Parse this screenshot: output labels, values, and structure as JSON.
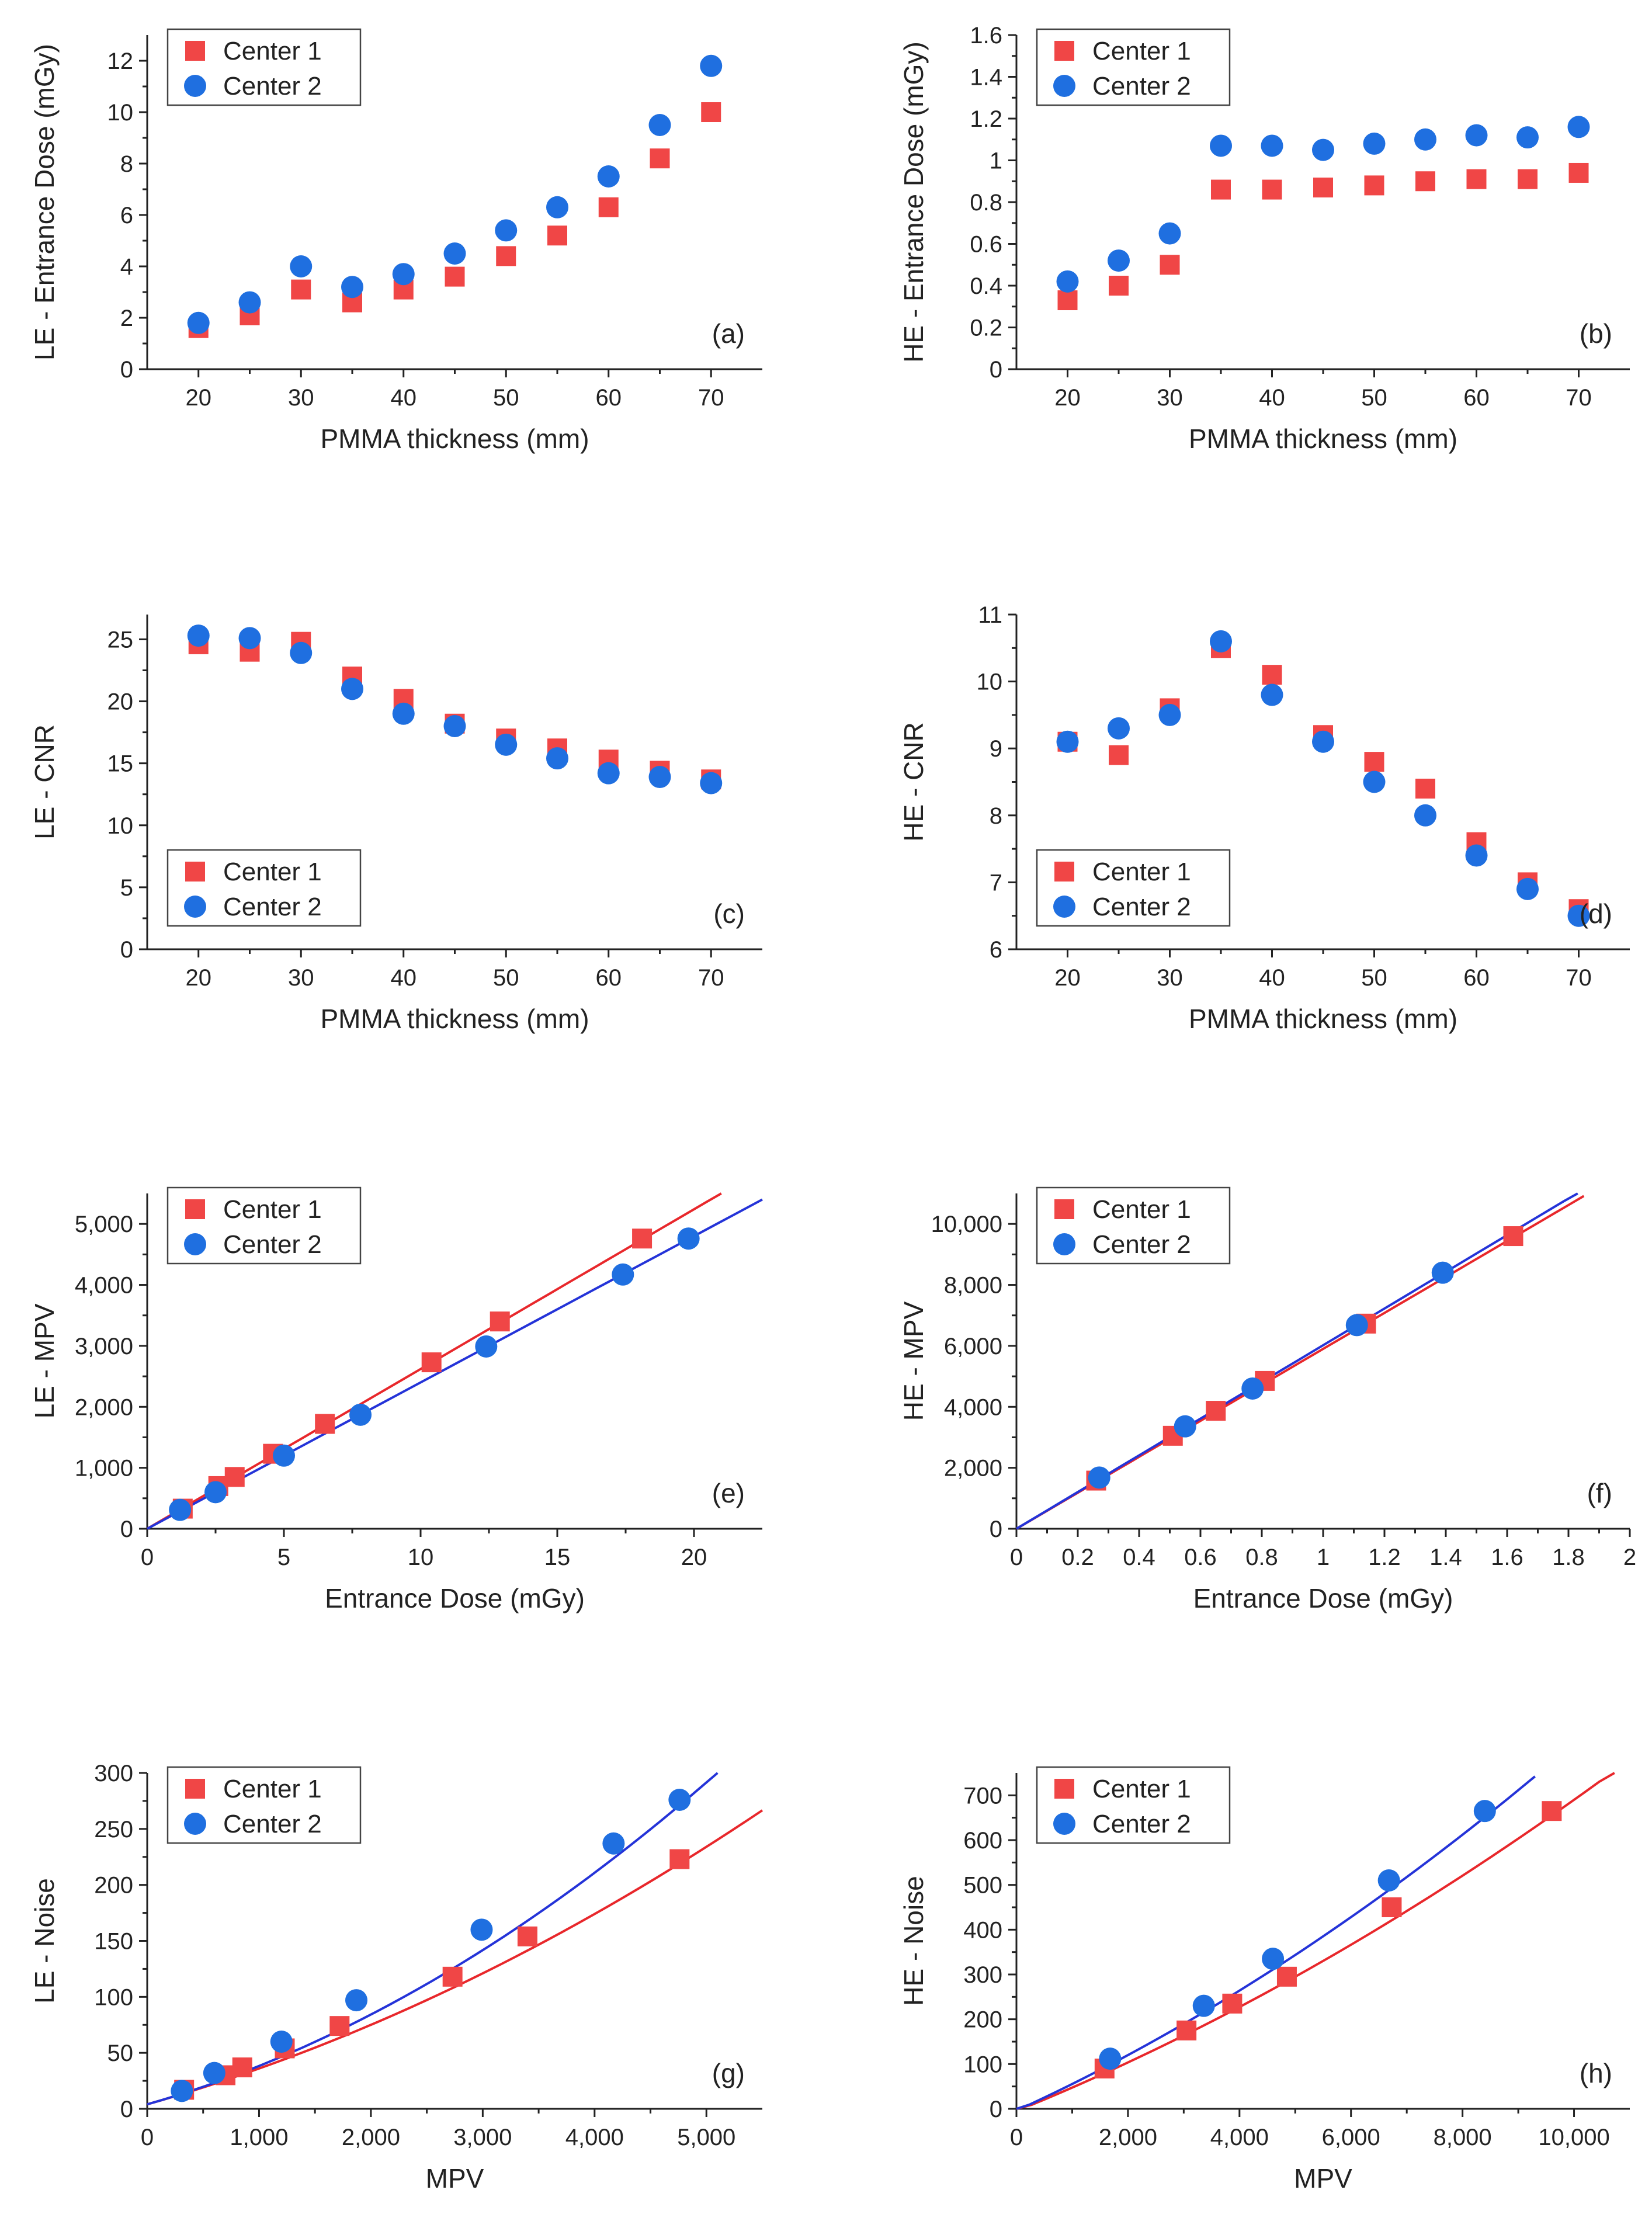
{
  "colors": {
    "center1": "#f04646",
    "center2": "#1f6fe0",
    "fit1": "#e8272b",
    "fit2": "#2433d8",
    "axis": "#222222"
  },
  "legend": {
    "center1": "Center 1",
    "center2": "Center 2"
  },
  "chart_data": [
    {
      "id": "a",
      "type": "scatter",
      "panel_label": "(a)",
      "xlabel": "PMMA thickness (mm)",
      "ylabel": "LE - Entrance Dose (mGy)",
      "xlim": [
        15,
        75
      ],
      "ylim": [
        0,
        13
      ],
      "x_ticks": [
        20,
        30,
        40,
        50,
        60,
        70
      ],
      "x_tick_labels": [
        "20",
        "30",
        "40",
        "50",
        "60",
        "70"
      ],
      "y_ticks": [
        0,
        2,
        4,
        6,
        8,
        10,
        12
      ],
      "y_tick_labels": [
        "0",
        "2",
        "4",
        "6",
        "8",
        "10",
        "12"
      ],
      "legend_position": "top-left",
      "label_position": "bottom-right",
      "series": [
        {
          "name": "Center 1",
          "marker": "square",
          "x": [
            20,
            25,
            30,
            35,
            40,
            45,
            50,
            55,
            60,
            65,
            70
          ],
          "y": [
            1.6,
            2.1,
            3.1,
            2.6,
            3.1,
            3.6,
            4.4,
            5.2,
            6.3,
            8.2,
            10.0
          ]
        },
        {
          "name": "Center 2",
          "marker": "circle",
          "x": [
            20,
            25,
            30,
            35,
            40,
            45,
            50,
            55,
            60,
            65,
            70
          ],
          "y": [
            1.8,
            2.6,
            4.0,
            3.2,
            3.7,
            4.5,
            5.4,
            6.3,
            7.5,
            9.5,
            11.8
          ]
        }
      ]
    },
    {
      "id": "b",
      "type": "scatter",
      "panel_label": "(b)",
      "xlabel": "PMMA thickness (mm)",
      "ylabel": "HE - Entrance Dose (mGy)",
      "xlim": [
        15,
        75
      ],
      "ylim": [
        0,
        1.6
      ],
      "x_ticks": [
        20,
        30,
        40,
        50,
        60,
        70
      ],
      "x_tick_labels": [
        "20",
        "30",
        "40",
        "50",
        "60",
        "70"
      ],
      "y_ticks": [
        0,
        0.2,
        0.4,
        0.6,
        0.8,
        1.0,
        1.2,
        1.4,
        1.6
      ],
      "y_tick_labels": [
        "0",
        "0.2",
        "0.4",
        "0.6",
        "0.8",
        "1",
        "1.2",
        "1.4",
        "1.6"
      ],
      "legend_position": "top-left",
      "label_position": "bottom-right",
      "series": [
        {
          "name": "Center 1",
          "marker": "square",
          "x": [
            20,
            25,
            30,
            35,
            40,
            45,
            50,
            55,
            60,
            65,
            70
          ],
          "y": [
            0.33,
            0.4,
            0.5,
            0.86,
            0.86,
            0.87,
            0.88,
            0.9,
            0.91,
            0.91,
            0.94
          ]
        },
        {
          "name": "Center 2",
          "marker": "circle",
          "x": [
            20,
            25,
            30,
            35,
            40,
            45,
            50,
            55,
            60,
            65,
            70
          ],
          "y": [
            0.42,
            0.52,
            0.65,
            1.07,
            1.07,
            1.05,
            1.08,
            1.1,
            1.12,
            1.11,
            1.16
          ]
        }
      ]
    },
    {
      "id": "c",
      "type": "scatter",
      "panel_label": "(c)",
      "xlabel": "PMMA thickness (mm)",
      "ylabel": "LE - CNR",
      "xlim": [
        15,
        75
      ],
      "ylim": [
        0,
        27
      ],
      "x_ticks": [
        20,
        30,
        40,
        50,
        60,
        70
      ],
      "x_tick_labels": [
        "20",
        "30",
        "40",
        "50",
        "60",
        "70"
      ],
      "y_ticks": [
        0,
        5,
        10,
        15,
        20,
        25
      ],
      "y_tick_labels": [
        "0",
        "5",
        "10",
        "15",
        "20",
        "25"
      ],
      "legend_position": "bottom-left",
      "label_position": "bottom-right",
      "series": [
        {
          "name": "Center 1",
          "marker": "square",
          "x": [
            20,
            25,
            30,
            35,
            40,
            45,
            50,
            55,
            60,
            65,
            70
          ],
          "y": [
            24.6,
            24.0,
            24.8,
            22.0,
            20.2,
            18.2,
            17.0,
            16.2,
            15.3,
            14.4,
            13.7
          ]
        },
        {
          "name": "Center 2",
          "marker": "circle",
          "x": [
            20,
            25,
            30,
            35,
            40,
            45,
            50,
            55,
            60,
            65,
            70
          ],
          "y": [
            25.3,
            25.1,
            23.9,
            21.0,
            19.0,
            18.0,
            16.5,
            15.4,
            14.2,
            13.9,
            13.4
          ]
        }
      ]
    },
    {
      "id": "d",
      "type": "scatter",
      "panel_label": "(d)",
      "xlabel": "PMMA thickness (mm)",
      "ylabel": "HE - CNR",
      "xlim": [
        15,
        75
      ],
      "ylim": [
        6,
        11
      ],
      "x_ticks": [
        20,
        30,
        40,
        50,
        60,
        70
      ],
      "x_tick_labels": [
        "20",
        "30",
        "40",
        "50",
        "60",
        "70"
      ],
      "y_ticks": [
        6,
        7,
        8,
        9,
        10,
        11
      ],
      "y_tick_labels": [
        "6",
        "7",
        "8",
        "9",
        "10",
        "11"
      ],
      "legend_position": "bottom-left",
      "label_position": "bottom-right",
      "series": [
        {
          "name": "Center 1",
          "marker": "square",
          "x": [
            20,
            25,
            30,
            35,
            40,
            45,
            50,
            55,
            60,
            65,
            70
          ],
          "y": [
            9.1,
            8.9,
            9.6,
            10.5,
            10.1,
            9.2,
            8.8,
            8.4,
            7.6,
            7.0,
            6.6
          ]
        },
        {
          "name": "Center 2",
          "marker": "circle",
          "x": [
            20,
            25,
            30,
            35,
            40,
            45,
            50,
            55,
            60,
            65,
            70
          ],
          "y": [
            9.1,
            9.3,
            9.5,
            10.6,
            9.8,
            9.1,
            8.5,
            8.0,
            7.4,
            6.9,
            6.5
          ]
        }
      ]
    },
    {
      "id": "e",
      "type": "scatter",
      "panel_label": "(e)",
      "xlabel": "Entrance Dose (mGy)",
      "ylabel": "LE - MPV",
      "xlim": [
        0,
        22.5
      ],
      "ylim": [
        0,
        5500
      ],
      "x_ticks": [
        0,
        5,
        10,
        15,
        20
      ],
      "x_tick_labels": [
        "0",
        "5",
        "10",
        "15",
        "20"
      ],
      "y_ticks": [
        0,
        1000,
        2000,
        3000,
        4000,
        5000
      ],
      "y_tick_labels": [
        "0",
        "1,000",
        "2,000",
        "3,000",
        "4,000",
        "5,000"
      ],
      "legend_position": "top-left",
      "label_position": "bottom-right",
      "series": [
        {
          "name": "Center 1",
          "marker": "square",
          "x": [
            1.3,
            2.6,
            3.2,
            4.6,
            6.5,
            10.4,
            12.9,
            18.1
          ],
          "y": [
            330,
            700,
            850,
            1230,
            1720,
            2730,
            3400,
            4760
          ],
          "fit": {
            "kind": "linear",
            "slope": 262,
            "intercept": 0,
            "x_range": [
              0,
              21.0
            ]
          }
        },
        {
          "name": "Center 2",
          "marker": "circle",
          "x": [
            1.2,
            2.5,
            5.0,
            7.8,
            12.4,
            17.4,
            19.8
          ],
          "y": [
            310,
            600,
            1200,
            1870,
            2990,
            4170,
            4760
          ],
          "fit": {
            "kind": "linear",
            "slope": 240,
            "intercept": 0,
            "x_range": [
              0,
              22.5
            ]
          }
        }
      ]
    },
    {
      "id": "f",
      "type": "scatter",
      "panel_label": "(f)",
      "xlabel": "Entrance Dose (mGy)",
      "ylabel": "HE - MPV",
      "xlim": [
        0,
        2.0
      ],
      "ylim": [
        0,
        11000
      ],
      "x_ticks": [
        0,
        0.2,
        0.4,
        0.6,
        0.8,
        1.0,
        1.2,
        1.4,
        1.6,
        1.8,
        2.0
      ],
      "x_tick_labels": [
        "0",
        "0.2",
        "0.4",
        "0.6",
        "0.8",
        "1",
        "1.2",
        "1.4",
        "1.6",
        "1.8",
        "2"
      ],
      "y_ticks": [
        0,
        2000,
        4000,
        6000,
        8000,
        10000
      ],
      "y_tick_labels": [
        "0",
        "2,000",
        "4,000",
        "6,000",
        "8,000",
        "10,000"
      ],
      "legend_position": "top-left",
      "label_position": "bottom-right",
      "series": [
        {
          "name": "Center 1",
          "marker": "square",
          "x": [
            0.26,
            0.51,
            0.65,
            0.81,
            1.14,
            1.62
          ],
          "y": [
            1580,
            3050,
            3870,
            4850,
            6730,
            9600
          ],
          "fit": {
            "kind": "linear",
            "slope": 5900,
            "intercept": 0,
            "x_range": [
              0,
              1.85
            ]
          }
        },
        {
          "name": "Center 2",
          "marker": "circle",
          "x": [
            0.27,
            0.55,
            0.77,
            1.11,
            1.39
          ],
          "y": [
            1680,
            3360,
            4600,
            6680,
            8400
          ],
          "fit": {
            "kind": "linear",
            "slope": 6020,
            "intercept": 0,
            "x_range": [
              0,
              1.83
            ]
          }
        }
      ]
    },
    {
      "id": "g",
      "type": "scatter",
      "panel_label": "(g)",
      "xlabel": "MPV",
      "ylabel": "LE - Noise",
      "xlim": [
        0,
        5500
      ],
      "ylim": [
        0,
        300
      ],
      "x_ticks": [
        0,
        1000,
        2000,
        3000,
        4000,
        5000
      ],
      "x_tick_labels": [
        "0",
        "1,000",
        "2,000",
        "3,000",
        "4,000",
        "5,000"
      ],
      "y_ticks": [
        0,
        50,
        100,
        150,
        200,
        250,
        300
      ],
      "y_tick_labels": [
        "0",
        "50",
        "100",
        "150",
        "200",
        "250",
        "300"
      ],
      "legend_position": "top-left",
      "label_position": "bottom-right",
      "series": [
        {
          "name": "Center 1",
          "marker": "square",
          "x": [
            330,
            700,
            850,
            1230,
            1720,
            2730,
            3400,
            4760
          ],
          "y": [
            17,
            30,
            37,
            54,
            74,
            118,
            154,
            223
          ],
          "fit": {
            "kind": "quadratic",
            "a": 3.5e-06,
            "b": 0.0285,
            "c": 4,
            "x_range": [
              0,
              5500
            ]
          }
        },
        {
          "name": "Center 2",
          "marker": "circle",
          "x": [
            310,
            600,
            1200,
            1870,
            2990,
            4170,
            4760
          ],
          "y": [
            16,
            32,
            60,
            97,
            160,
            237,
            276
          ],
          "fit": {
            "kind": "quadratic",
            "a": 5.8e-06,
            "b": 0.0285,
            "c": 4,
            "x_range": [
              0,
              5100
            ]
          }
        }
      ]
    },
    {
      "id": "h",
      "type": "scatter",
      "panel_label": "(h)",
      "xlabel": "MPV",
      "ylabel": "HE - Noise",
      "xlim": [
        0,
        11000
      ],
      "ylim": [
        0,
        750
      ],
      "x_ticks": [
        0,
        2000,
        4000,
        6000,
        8000,
        10000
      ],
      "x_tick_labels": [
        "0",
        "2,000",
        "4,000",
        "6,000",
        "8,000",
        "10,000"
      ],
      "y_ticks": [
        0,
        100,
        200,
        300,
        400,
        500,
        600,
        700
      ],
      "y_tick_labels": [
        "0",
        "100",
        "200",
        "300",
        "400",
        "500",
        "600",
        "700"
      ],
      "legend_position": "top-left",
      "label_position": "bottom-right",
      "series": [
        {
          "name": "Center 1",
          "marker": "square",
          "x": [
            1580,
            3050,
            3870,
            4850,
            6730,
            9600
          ],
          "y": [
            90,
            175,
            235,
            295,
            450,
            665
          ],
          "fit": {
            "kind": "quadratic",
            "a": 1.9e-06,
            "b": 0.0505,
            "c": -5,
            "x_range": [
              0,
              11000
            ]
          }
        },
        {
          "name": "Center 2",
          "marker": "circle",
          "x": [
            1680,
            3360,
            4600,
            6680,
            8400
          ],
          "y": [
            112,
            230,
            335,
            510,
            665
          ],
          "fit": {
            "kind": "quadratic",
            "a": 2.5e-06,
            "b": 0.057,
            "c": -4,
            "x_range": [
              0,
              9300
            ]
          }
        }
      ]
    }
  ]
}
